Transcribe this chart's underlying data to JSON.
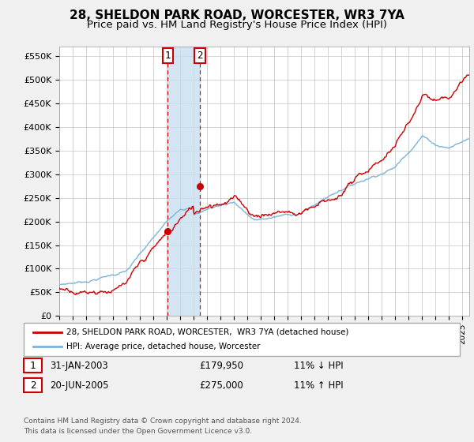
{
  "title": "28, SHELDON PARK ROAD, WORCESTER, WR3 7YA",
  "subtitle": "Price paid vs. HM Land Registry's House Price Index (HPI)",
  "title_fontsize": 11,
  "subtitle_fontsize": 9.5,
  "ylim": [
    0,
    570000
  ],
  "yticks": [
    0,
    50000,
    100000,
    150000,
    200000,
    250000,
    300000,
    350000,
    400000,
    450000,
    500000,
    550000
  ],
  "ytick_labels": [
    "£0",
    "£50K",
    "£100K",
    "£150K",
    "£200K",
    "£250K",
    "£300K",
    "£350K",
    "£400K",
    "£450K",
    "£500K",
    "£550K"
  ],
  "hpi_color": "#7ab4d8",
  "price_color": "#cc0000",
  "background_color": "#f0f0f0",
  "plot_bg_color": "#ffffff",
  "grid_color": "#cccccc",
  "t1_year": 2003.08,
  "t2_year": 2005.46,
  "p1_price": 179950,
  "p2_price": 275000,
  "legend_entries": [
    "28, SHELDON PARK ROAD, WORCESTER,  WR3 7YA (detached house)",
    "HPI: Average price, detached house, Worcester"
  ],
  "table_entries": [
    {
      "num": "1",
      "date": "31-JAN-2003",
      "price": "£179,950",
      "change": "11% ↓ HPI"
    },
    {
      "num": "2",
      "date": "20-JUN-2005",
      "price": "£275,000",
      "change": "11% ↑ HPI"
    }
  ],
  "footer": "Contains HM Land Registry data © Crown copyright and database right 2024.\nThis data is licensed under the Open Government Licence v3.0."
}
